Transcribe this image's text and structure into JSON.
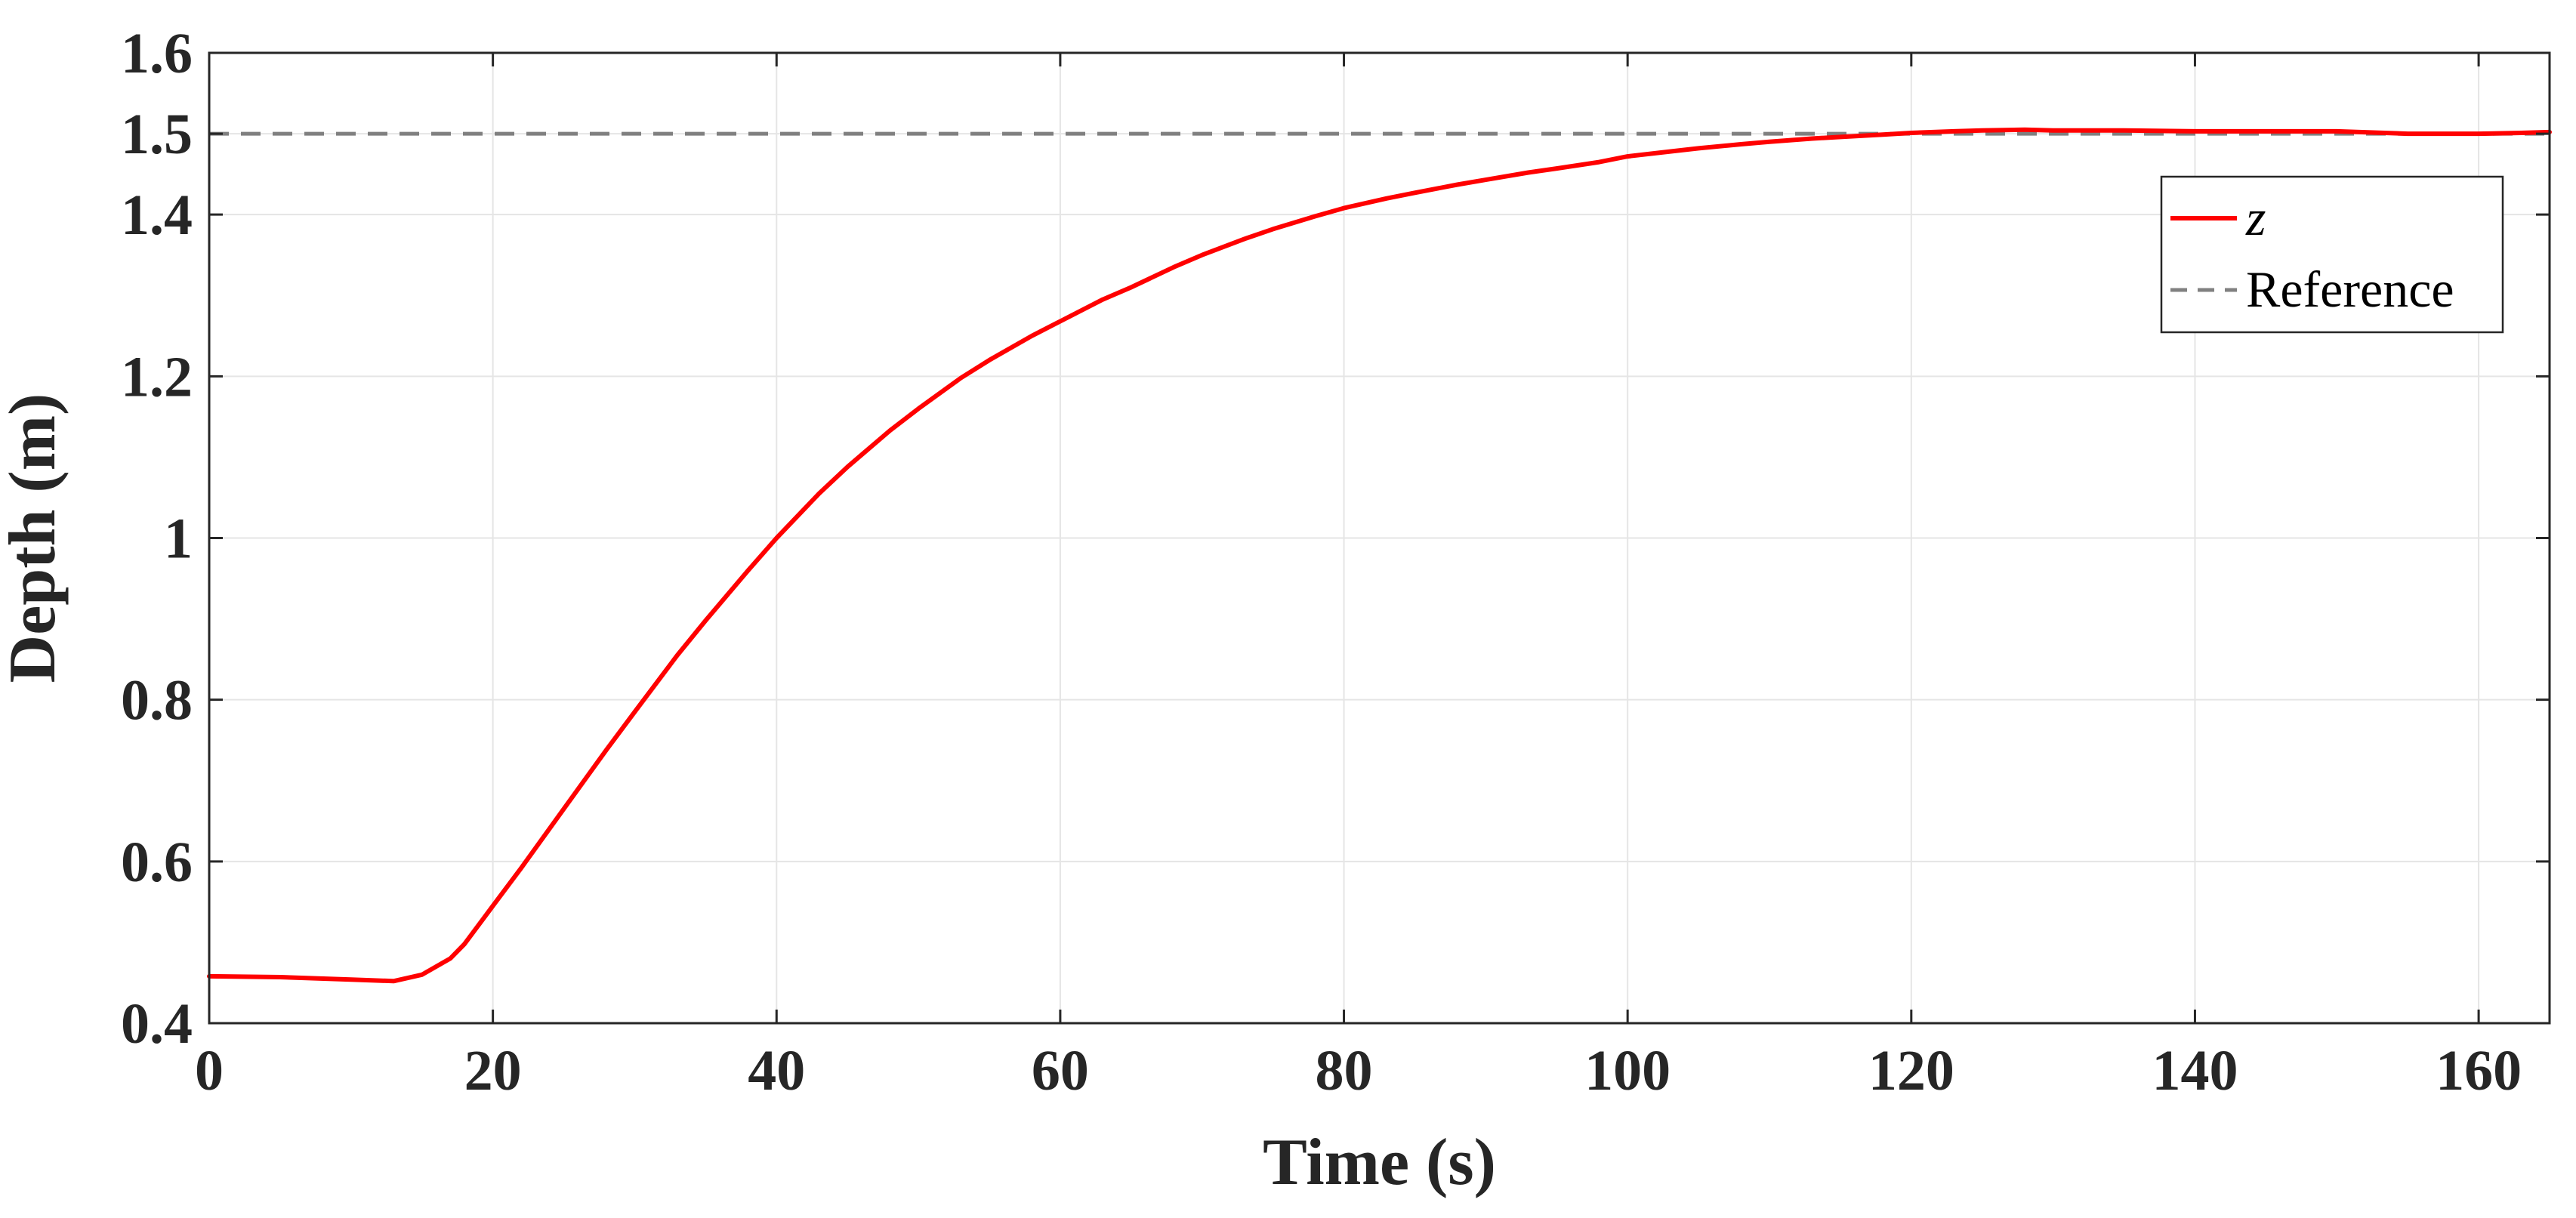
{
  "chart_data": {
    "type": "line",
    "title": "",
    "xlabel": "Time (s)",
    "ylabel": "Depth (m)",
    "xlim": [
      0,
      165
    ],
    "ylim": [
      0.4,
      1.6
    ],
    "x_ticks": [
      0,
      20,
      40,
      60,
      80,
      100,
      120,
      140,
      160
    ],
    "x_tick_labels": [
      "0",
      "20",
      "40",
      "60",
      "80",
      "100",
      "120",
      "140",
      "160"
    ],
    "y_ticks": [
      0.4,
      0.6,
      0.8,
      1.0,
      1.2,
      1.4,
      1.5,
      1.6
    ],
    "y_tick_labels": [
      "0.4",
      "0.6",
      "0.8",
      "1",
      "1.2",
      "1.4",
      "1.5",
      "1.6"
    ],
    "grid": true,
    "legend_position": "top-right",
    "series": [
      {
        "name": "z",
        "style": "solid",
        "color": "#ff0000",
        "x": [
          0,
          5,
          10,
          13,
          15,
          17,
          18,
          20,
          22,
          25,
          28,
          30,
          33,
          35,
          38,
          40,
          43,
          45,
          48,
          50,
          53,
          55,
          58,
          60,
          63,
          65,
          68,
          70,
          73,
          75,
          78,
          80,
          83,
          85,
          88,
          90,
          93,
          95,
          98,
          100,
          103,
          105,
          108,
          110,
          113,
          115,
          118,
          120,
          123,
          125,
          128,
          130,
          135,
          140,
          145,
          150,
          155,
          160,
          163,
          165
        ],
        "y": [
          0.458,
          0.457,
          0.454,
          0.452,
          0.46,
          0.48,
          0.498,
          0.545,
          0.592,
          0.665,
          0.738,
          0.785,
          0.855,
          0.898,
          0.96,
          1.0,
          1.055,
          1.088,
          1.133,
          1.16,
          1.198,
          1.22,
          1.25,
          1.268,
          1.295,
          1.31,
          1.335,
          1.35,
          1.37,
          1.382,
          1.398,
          1.408,
          1.42,
          1.427,
          1.437,
          1.443,
          1.452,
          1.457,
          1.465,
          1.472,
          1.478,
          1.482,
          1.487,
          1.49,
          1.494,
          1.496,
          1.499,
          1.501,
          1.503,
          1.504,
          1.505,
          1.504,
          1.504,
          1.503,
          1.503,
          1.503,
          1.5,
          1.5,
          1.501,
          1.502
        ]
      },
      {
        "name": "Reference",
        "style": "dashed",
        "color": "#808080",
        "x": [
          0,
          165
        ],
        "y": [
          1.5,
          1.5
        ]
      }
    ]
  },
  "colors": {
    "grid": "#e5e5e5",
    "axis": "#262626",
    "legend_border": "#262626"
  }
}
